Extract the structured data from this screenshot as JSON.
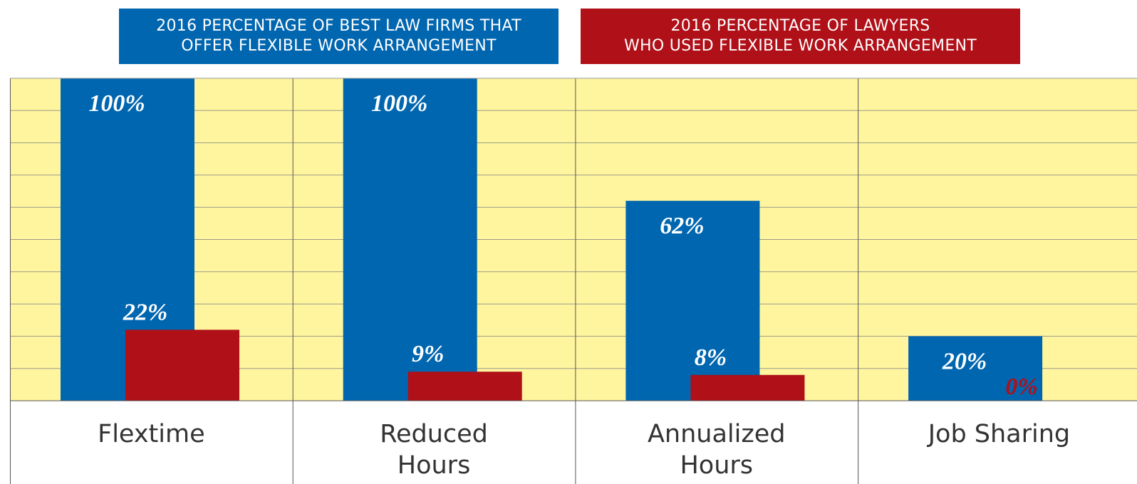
{
  "chart_data": {
    "type": "bar",
    "categories": [
      "Flextime",
      "Reduced Hours",
      "Annualized Hours",
      "Job Sharing"
    ],
    "series": [
      {
        "name": "2016 PERCENTAGE OF BEST LAW FIRMS THAT\nOFFER FLEXIBLE WORK ARRANGEMENT",
        "color": "#0066b0",
        "values": [
          100,
          100,
          62,
          20
        ],
        "value_labels": [
          "100%",
          "100%",
          "62%",
          "20%"
        ]
      },
      {
        "name": "2016 PERCENTAGE OF LAWYERS\nWHO USED FLEXIBLE WORK ARRANGEMENT",
        "color": "#b01018",
        "values": [
          22,
          9,
          8,
          0
        ],
        "value_labels": [
          "22%",
          "9%",
          "8%",
          "0%"
        ]
      }
    ],
    "ylim": [
      0,
      100
    ],
    "yticks": [
      0,
      10,
      20,
      30,
      40,
      50,
      60,
      70,
      80,
      90,
      100
    ],
    "grid": true
  }
}
